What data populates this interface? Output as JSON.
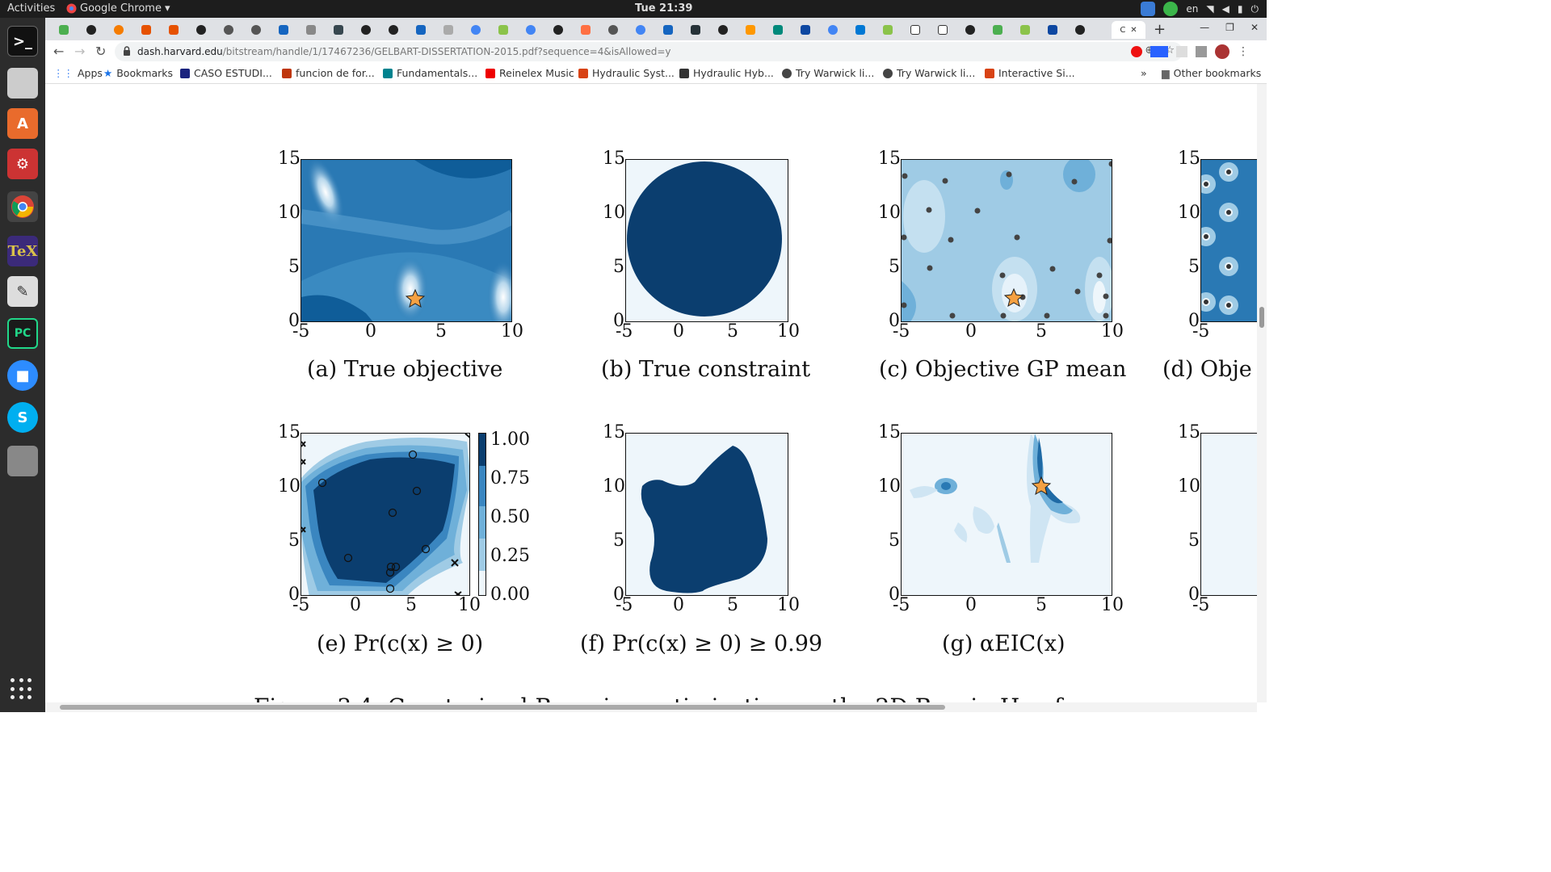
{
  "topbar": {
    "activities": "Activities",
    "app_name": "Google Chrome",
    "clock": "Tue 21:39",
    "lang": "en"
  },
  "tabs": {
    "active_label": "C",
    "new_tab_label": "+"
  },
  "omnibox": {
    "host": "dash.harvard.edu",
    "path": "/bitstream/handle/1/17467236/GELBART-DISSERTATION-2015.pdf?sequence=4&isAllowed=y"
  },
  "bookmarks": {
    "items": [
      "Apps",
      "Bookmarks",
      "CASO ESTUDI...",
      "funcion de for...",
      "Fundamentals...",
      "Reinelex Music",
      "Hydraulic Syst...",
      "Hydraulic Hyb...",
      "Try Warwick li...",
      "Try Warwick li...",
      "Interactive Si..."
    ],
    "overflow": "»",
    "other": "Other bookmarks"
  },
  "figure": {
    "y_ticks": [
      "15",
      "10",
      "5",
      "0"
    ],
    "x_ticks": [
      "-5",
      "0",
      "5",
      "10"
    ],
    "colorbar_ticks": [
      "1.00",
      "0.75",
      "0.50",
      "0.25",
      "0.00"
    ],
    "captions": {
      "a": "(a)  True objective",
      "b": "(b)  True constraint",
      "c": "(c)  Objective GP mean",
      "d": "(d)  Obje",
      "e": "(e)  Pr(c(x) ≥ 0)",
      "f": "(f)  Pr(c(x) ≥ 0) ≥ 0.99",
      "g": "(g)  αEIC(x)"
    },
    "bottom_text_partial": "Figure 3.4:  Constrained Bayesian optimization on the 2D Branin-Hoo f"
  },
  "colors": {
    "dark_blue": "#0b3e6f",
    "mid_blue": "#3a86c0",
    "light_blue": "#9fcbe5",
    "pale_blue": "#eef6fb",
    "star": "#f5a142"
  }
}
